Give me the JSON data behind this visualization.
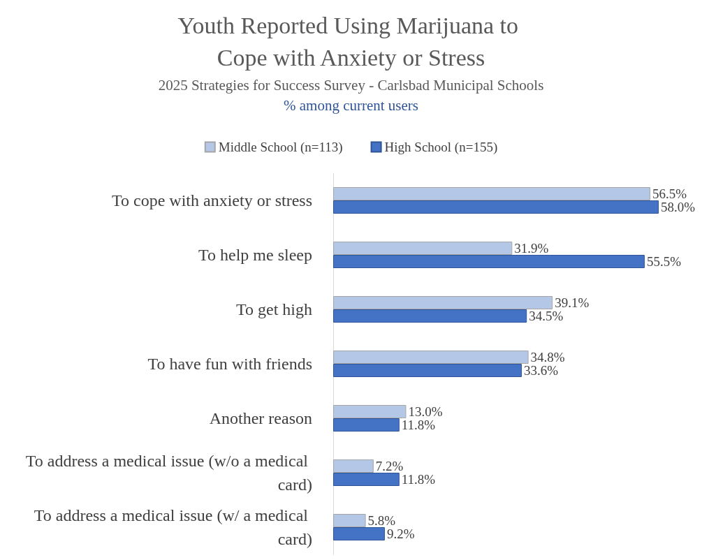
{
  "chart_data": {
    "type": "bar",
    "orientation": "horizontal",
    "title": "Youth Reported Using Marijuana to Cope with Anxiety or Stress",
    "subtitle": "2025 Strategies for Success Survey - Carlsbad Municipal Schools",
    "annotations": [
      "% among current users"
    ],
    "categories": [
      "To cope with anxiety or stress",
      "To help me sleep",
      "To get high",
      "To have fun with friends",
      "Another reason",
      "To address a medical issue (w/o a medical card)",
      "To address a medical issue (w/ a medical card)"
    ],
    "series": [
      {
        "name": "Middle School (n=113)",
        "color": "#b4c7e7",
        "values": [
          56.5,
          31.9,
          39.1,
          34.8,
          13.0,
          7.2,
          5.8
        ],
        "value_labels": [
          "56.5%",
          "31.9%",
          "39.1%",
          "34.8%",
          "13.0%",
          "7.2%",
          "5.8%"
        ]
      },
      {
        "name": "High School (n=155)",
        "color": "#4472c4",
        "values": [
          58.0,
          55.5,
          34.5,
          33.6,
          11.8,
          11.8,
          9.2
        ],
        "value_labels": [
          "58.0%",
          "55.5%",
          "34.5%",
          "33.6%",
          "11.8%",
          "11.8%",
          "9.2%"
        ]
      }
    ],
    "legend": "top"
  }
}
